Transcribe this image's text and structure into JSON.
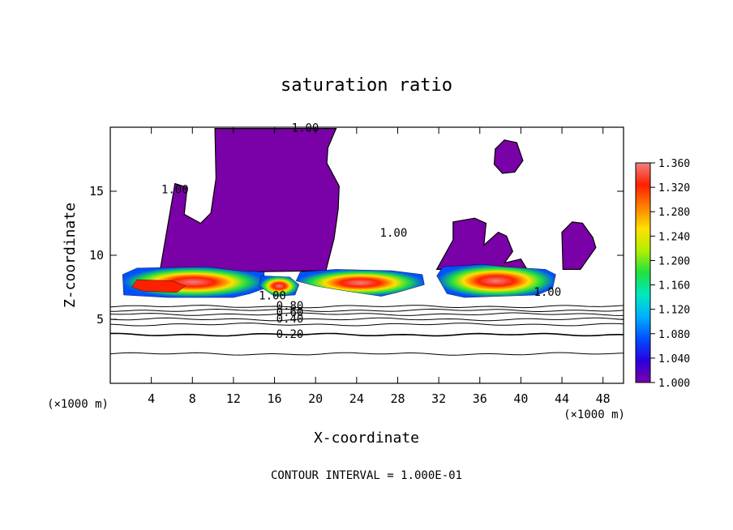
{
  "chart_data": {
    "type": "heatmap",
    "title": "saturation ratio",
    "xlabel": "X-coordinate",
    "ylabel": "Z-coordinate",
    "x_unit_label": "(×1000 m)",
    "y_unit_label": "(×1000 m)",
    "xlim": [
      0,
      50
    ],
    "ylim": [
      0,
      20
    ],
    "x_ticks": [
      4,
      8,
      12,
      16,
      20,
      24,
      28,
      32,
      36,
      40,
      44,
      48
    ],
    "y_ticks": [
      5,
      10,
      15
    ],
    "colorbar": {
      "min": 1.0,
      "max": 1.36,
      "ticks": [
        "1.360",
        "1.320",
        "1.280",
        "1.240",
        "1.200",
        "1.160",
        "1.120",
        "1.080",
        "1.040",
        "1.000"
      ],
      "colors": [
        "#7a00a8",
        "#2a00e0",
        "#0050ff",
        "#00b0ff",
        "#00e8c0",
        "#20e040",
        "#b0f000",
        "#ffe000",
        "#ff8000",
        "#ff2000",
        "#f08080"
      ]
    },
    "contour_interval_text": "CONTOUR INTERVAL = 1.000E-01",
    "contour_labels": [
      {
        "text": "1.00",
        "x": 19.0,
        "z": 19.9
      },
      {
        "text": "1.00",
        "x": 6.3,
        "z": 15.1
      },
      {
        "text": "1.00",
        "x": 27.6,
        "z": 11.7
      },
      {
        "text": "1.00",
        "x": 15.8,
        "z": 6.8
      },
      {
        "text": "1.00",
        "x": 42.6,
        "z": 7.1
      },
      {
        "text": "0.80",
        "x": 17.5,
        "z": 6.0
      },
      {
        "text": "0.60",
        "x": 17.5,
        "z": 5.5
      },
      {
        "text": "0.40",
        "x": 17.5,
        "z": 5.0
      },
      {
        "text": "0.20",
        "x": 17.5,
        "z": 3.8
      }
    ],
    "contour_lines_z": [
      2.3,
      3.8,
      4.6,
      5.0,
      5.4,
      5.7,
      6.0
    ],
    "supersaturated_regions": [
      {
        "name": "plume-west",
        "polygon": [
          [
            4.8,
            8.6
          ],
          [
            6.3,
            15.6
          ],
          [
            7.5,
            15.3
          ],
          [
            7.2,
            13.2
          ],
          [
            8.8,
            12.5
          ],
          [
            9.8,
            13.3
          ],
          [
            10.3,
            16.0
          ],
          [
            10.2,
            19.9
          ],
          [
            22.0,
            19.9
          ],
          [
            21.2,
            18.4
          ],
          [
            21.1,
            17.2
          ],
          [
            22.3,
            15.4
          ],
          [
            22.2,
            13.6
          ],
          [
            21.8,
            11.3
          ],
          [
            21.0,
            8.8
          ]
        ]
      },
      {
        "name": "plume-east",
        "polygon": [
          [
            31.8,
            8.9
          ],
          [
            33.4,
            11.2
          ],
          [
            33.4,
            12.6
          ],
          [
            35.5,
            12.9
          ],
          [
            36.6,
            12.5
          ],
          [
            36.4,
            10.8
          ],
          [
            37.8,
            11.8
          ],
          [
            38.6,
            11.5
          ],
          [
            39.2,
            10.3
          ],
          [
            38.4,
            9.4
          ],
          [
            40.0,
            9.7
          ],
          [
            40.6,
            8.9
          ]
        ]
      },
      {
        "name": "plume-far-east",
        "polygon": [
          [
            44.1,
            8.9
          ],
          [
            44.0,
            11.8
          ],
          [
            45.0,
            12.6
          ],
          [
            46.0,
            12.5
          ],
          [
            47.0,
            11.4
          ],
          [
            47.3,
            10.6
          ],
          [
            46.5,
            9.7
          ],
          [
            45.8,
            8.9
          ]
        ]
      },
      {
        "name": "blob-top",
        "polygon": [
          [
            37.4,
            17.1
          ],
          [
            37.5,
            18.3
          ],
          [
            38.4,
            19.0
          ],
          [
            39.6,
            18.8
          ],
          [
            40.2,
            17.4
          ],
          [
            39.4,
            16.5
          ],
          [
            38.2,
            16.4
          ]
        ]
      },
      {
        "name": "cloud-layer-1",
        "polygon": [
          [
            1.2,
            8.5
          ],
          [
            2.6,
            9.0
          ],
          [
            9.5,
            9.1
          ],
          [
            12.5,
            8.8
          ],
          [
            15.0,
            8.7
          ],
          [
            15.0,
            7.4
          ],
          [
            13.6,
            7.0
          ],
          [
            12.0,
            6.7
          ],
          [
            5.6,
            6.7
          ],
          [
            1.3,
            6.9
          ]
        ]
      },
      {
        "name": "cloud-layer-2",
        "polygon": [
          [
            14.5,
            7.6
          ],
          [
            14.7,
            8.4
          ],
          [
            17.5,
            8.3
          ],
          [
            18.4,
            7.7
          ],
          [
            18.0,
            6.9
          ],
          [
            16.0,
            6.8
          ]
        ]
      },
      {
        "name": "cloud-layer-3",
        "polygon": [
          [
            18.1,
            8.0
          ],
          [
            18.5,
            8.7
          ],
          [
            22.0,
            8.9
          ],
          [
            27.4,
            8.8
          ],
          [
            30.4,
            8.5
          ],
          [
            30.6,
            7.7
          ],
          [
            28.0,
            7.1
          ],
          [
            26.4,
            6.8
          ],
          [
            23.0,
            7.2
          ],
          [
            20.0,
            7.6
          ]
        ]
      },
      {
        "name": "cloud-layer-4",
        "polygon": [
          [
            31.8,
            8.4
          ],
          [
            32.4,
            9.1
          ],
          [
            36.3,
            9.3
          ],
          [
            38.4,
            9.1
          ],
          [
            42.4,
            8.9
          ],
          [
            43.4,
            8.5
          ],
          [
            43.1,
            7.4
          ],
          [
            41.6,
            6.9
          ],
          [
            34.5,
            6.7
          ],
          [
            32.8,
            7.0
          ]
        ]
      },
      {
        "name": "cloud-cores",
        "polygon": [
          [
            2.1,
            7.5
          ],
          [
            2.6,
            8.1
          ],
          [
            6.0,
            8.0
          ],
          [
            7.3,
            7.6
          ],
          [
            6.5,
            7.1
          ],
          [
            3.2,
            7.2
          ]
        ]
      }
    ],
    "grid": false,
    "colorbar_position": "right"
  }
}
